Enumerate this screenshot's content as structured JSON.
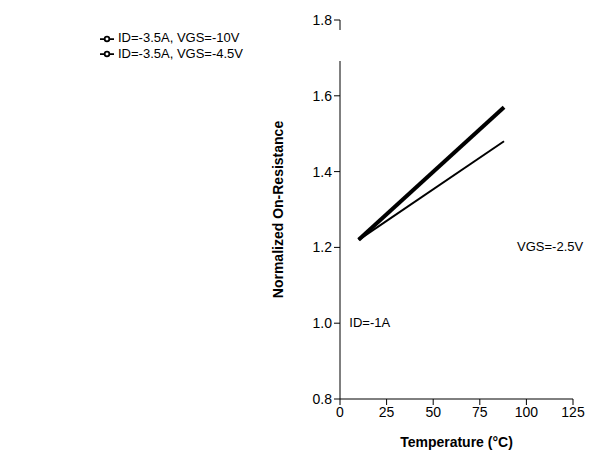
{
  "chart_data": {
    "type": "line",
    "x_label": "Temperature (°C)",
    "y_label": "Normalized On-Resistance",
    "x": [
      10,
      88
    ],
    "series": [
      {
        "name": "ID=-3.5A, VGS=-4.5V",
        "color": "#000000",
        "line_style": "thick",
        "values": [
          1.22,
          1.57
        ]
      },
      {
        "name": "ID=-3.5A, VGS=-10V",
        "color": "#000000",
        "line_style": "solid",
        "values": [
          1.22,
          1.48
        ]
      }
    ],
    "xlim": [
      0,
      125
    ],
    "xticks": [
      0,
      25,
      50,
      75,
      100,
      125
    ],
    "ylim": [
      0.8,
      1.8
    ],
    "yticks": [
      0.8,
      {
        "value": 1,
        "label": "1.0"
      },
      1.2,
      1.4,
      1.6,
      1.8
    ],
    "grid": false,
    "legend": "upper left",
    "annotations": [
      {
        "text": "VGS=-2.5V",
        "x": 95,
        "y": 1.2
      },
      {
        "text": "ID=-1A",
        "x": 5,
        "y": 1.0
      }
    ]
  }
}
